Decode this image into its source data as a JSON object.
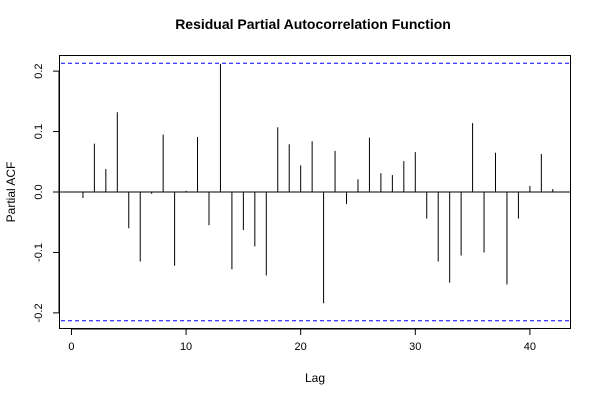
{
  "chart_data": {
    "type": "bar",
    "title": "Residual Partial Autocorrelation Function",
    "xlabel": "Lag",
    "ylabel": "Partial ACF",
    "xlim": [
      -1,
      43.5
    ],
    "ylim": [
      -0.225,
      0.225
    ],
    "xticks": [
      0,
      10,
      20,
      30,
      40
    ],
    "yticks": [
      -0.2,
      -0.1,
      0.0,
      0.1,
      0.2
    ],
    "xtick_labels": [
      "0",
      "10",
      "20",
      "30",
      "40"
    ],
    "ytick_labels": [
      "-0.2",
      "-0.1",
      "0.0",
      "0.1",
      "0.2"
    ],
    "confidence_band": 0.213,
    "confidence_color": "#0000ff",
    "bar_color": "#000000",
    "grid": false,
    "lags": [
      1,
      2,
      3,
      4,
      5,
      6,
      7,
      8,
      9,
      10,
      11,
      12,
      13,
      14,
      15,
      16,
      17,
      18,
      19,
      20,
      21,
      22,
      23,
      24,
      25,
      26,
      27,
      28,
      29,
      30,
      31,
      32,
      33,
      34,
      35,
      36,
      37,
      38,
      39,
      40,
      41,
      42
    ],
    "values": [
      -0.01,
      0.08,
      0.038,
      0.132,
      -0.06,
      -0.115,
      -0.003,
      0.095,
      -0.122,
      0.002,
      0.091,
      -0.055,
      0.212,
      -0.128,
      -0.063,
      -0.09,
      -0.138,
      0.107,
      0.079,
      0.044,
      0.084,
      -0.184,
      0.068,
      -0.02,
      0.021,
      0.09,
      0.031,
      0.028,
      0.051,
      0.066,
      -0.044,
      -0.115,
      -0.15,
      -0.105,
      0.114,
      -0.1,
      0.065,
      -0.153,
      -0.044,
      0.01,
      0.063,
      0.005
    ]
  }
}
